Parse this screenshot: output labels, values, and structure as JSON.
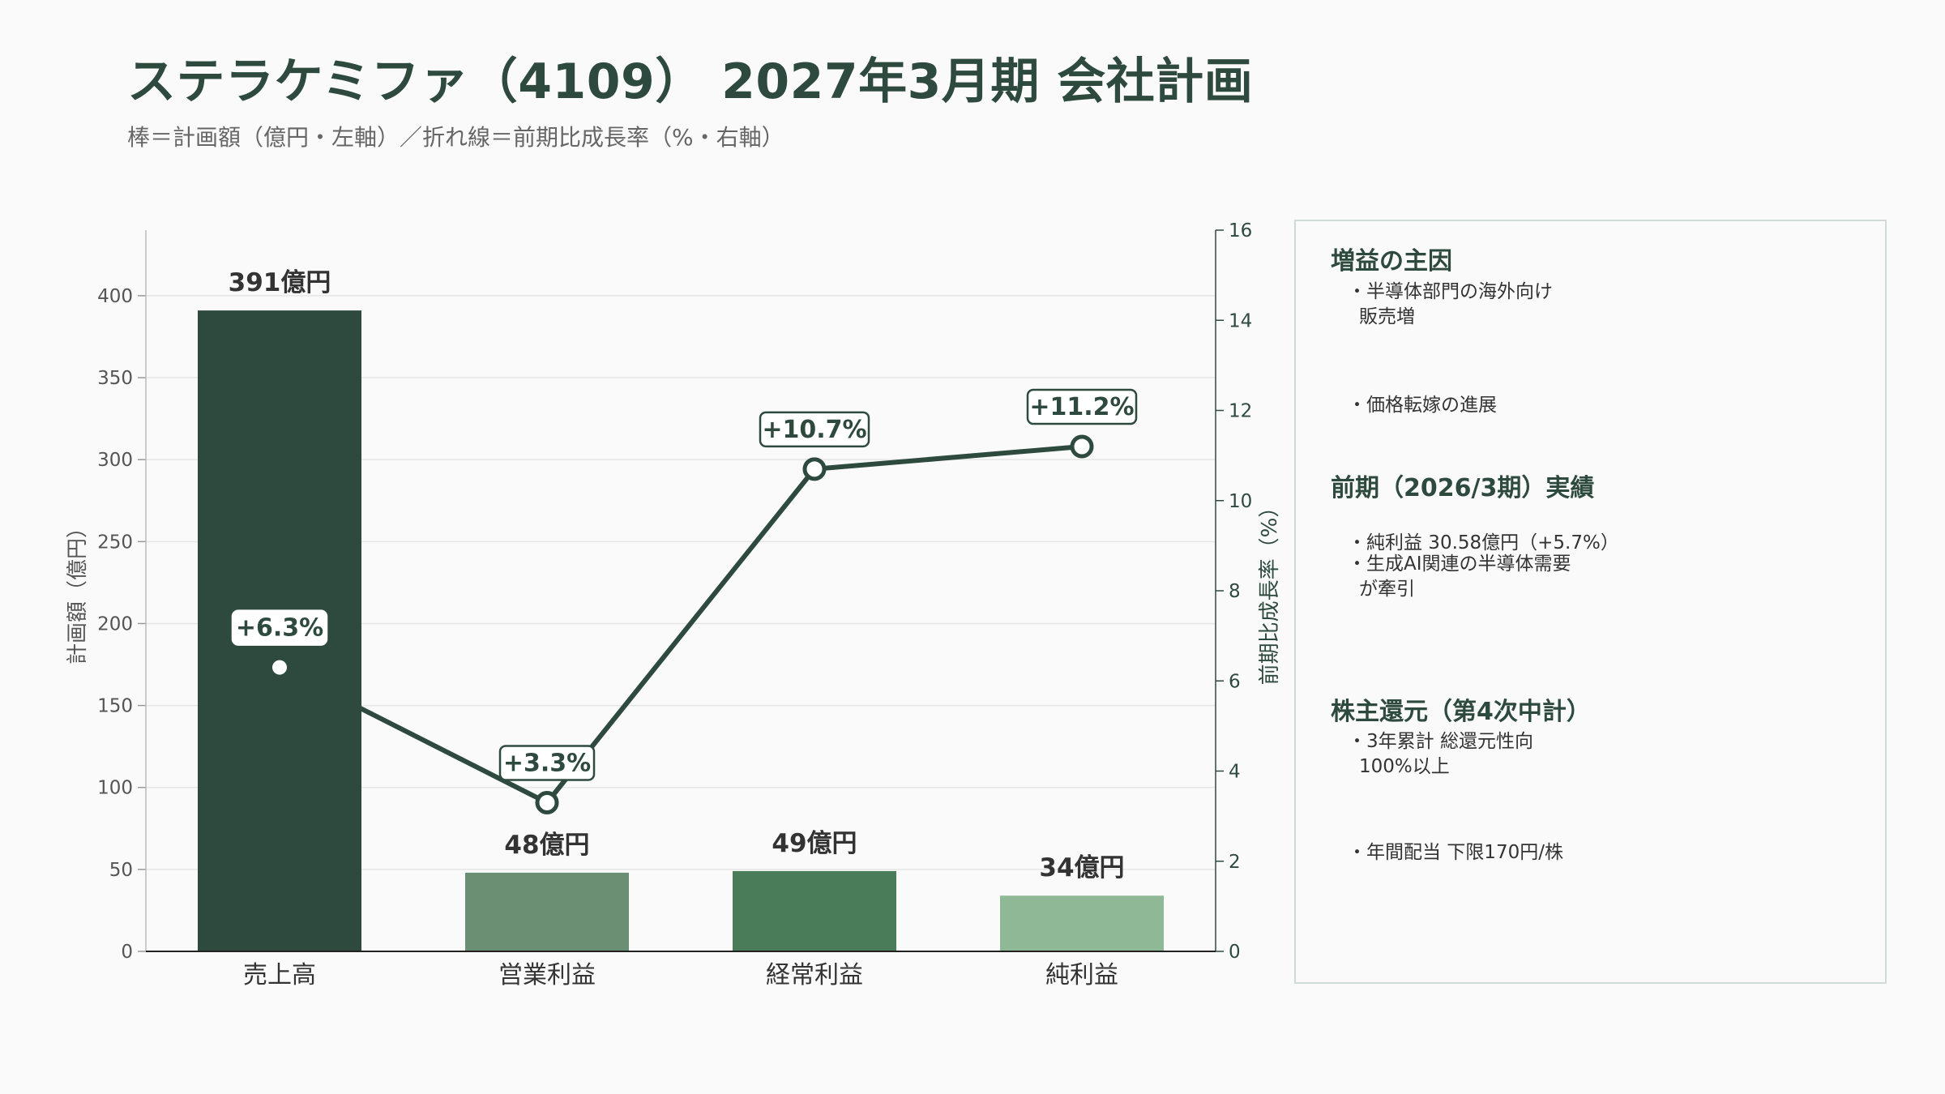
{
  "title": "ステラケミファ（4109） 2027年3月期 会社計画",
  "subtitle": "棒＝計画額（億円・左軸）／折れ線＝前期比成長率（%・右軸）",
  "colors": {
    "line": "#2e4a3f",
    "bars": [
      "#2e4a3f",
      "#6b8f72",
      "#4a7c59",
      "#8fb996"
    ]
  },
  "chart_data": {
    "type": "bar",
    "categories": [
      "売上高",
      "営業利益",
      "経常利益",
      "純利益"
    ],
    "series": [
      {
        "values": [
          391,
          48,
          49,
          34
        ],
        "labels": [
          "391億円",
          "48億円",
          "49億円",
          "34億円"
        ],
        "axis": "left"
      },
      {
        "type": "line",
        "values": [
          6.3,
          3.3,
          10.7,
          11.2
        ],
        "labels": [
          "+6.3%",
          "+3.3%",
          "+10.7%",
          "+11.2%"
        ],
        "axis": "right"
      }
    ],
    "ylabel": "計画額（億円）",
    "y2label": "前期比成長率（%）",
    "ylim": [
      0,
      440
    ],
    "y2lim": [
      0,
      16
    ],
    "yticks": [
      0,
      50,
      100,
      150,
      200,
      250,
      300,
      350,
      400
    ],
    "y2ticks": [
      0,
      2,
      4,
      6,
      8,
      10,
      12,
      14,
      16
    ],
    "grid": true
  },
  "sidebar": {
    "sections": [
      {
        "heading": "増益の主因",
        "items": [
          [
            "・半導体部門の海外向け",
            "販売増"
          ],
          [
            "・価格転嫁の進展"
          ]
        ]
      },
      {
        "heading": "前期（2026/3期）実績",
        "items": [
          [
            "・純利益 30.58億円（+5.7%）"
          ],
          [
            "・生成AI関連の半導体需要",
            "が牽引"
          ]
        ]
      },
      {
        "heading": "株主還元（第4次中計）",
        "items": [
          [
            "・3年累計 総還元性向",
            "100%以上"
          ],
          [
            "・年間配当 下限170円/株"
          ]
        ]
      }
    ]
  }
}
